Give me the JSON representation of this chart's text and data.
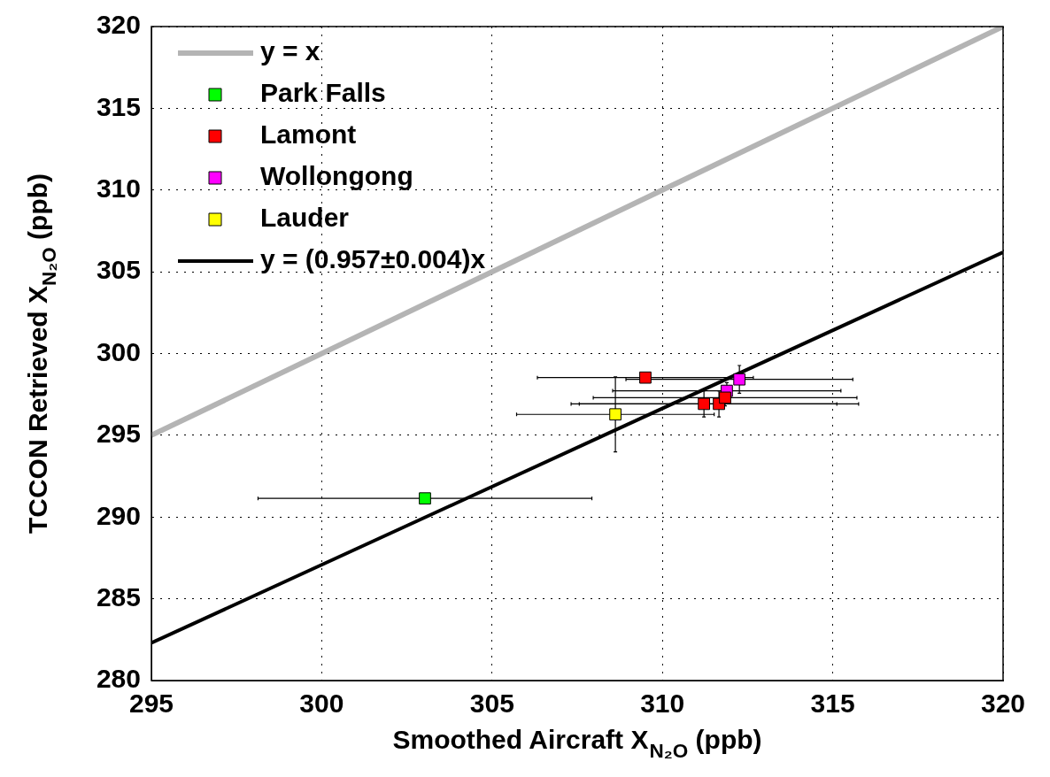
{
  "chart_data": {
    "type": "scatter",
    "xlabel": "Smoothed Aircraft X$_{N₂O}$ (ppb)",
    "ylabel": "TCCON Retrieved X$_{N₂O}$ (ppb)",
    "xlim": [
      295,
      320
    ],
    "xticks": [
      295,
      300,
      305,
      310,
      315,
      320
    ],
    "ylim": [
      280,
      320
    ],
    "yticks": [
      280,
      285,
      290,
      295,
      300,
      305,
      310,
      315,
      320
    ],
    "grid": true,
    "legend": "top left",
    "marker": "square",
    "series": [
      {
        "name": "y = x",
        "type": "line",
        "marker": "none",
        "color": "#b4b4b4",
        "x": [
          295,
          320
        ],
        "values": [
          295,
          320
        ]
      },
      {
        "name": "Park Falls",
        "color": "#00ff00",
        "x": [
          303.03
        ],
        "values": [
          291.14
        ],
        "xerrors": [
          4.9
        ]
      },
      {
        "name": "Lamont",
        "color": "#ff0000",
        "x": [
          309.5,
          311.22,
          311.66,
          311.84
        ],
        "values": [
          298.53,
          296.92,
          296.92,
          297.3
        ],
        "xerrors": [
          3.17,
          3.9,
          4.1,
          3.87
        ],
        "errors": [
          null,
          0.8,
          0.8,
          0.5
        ]
      },
      {
        "name": "Wollongong",
        "color": "#ff00ff",
        "x": [
          311.89,
          312.26
        ],
        "values": [
          297.72,
          298.42
        ],
        "xerrors": [
          3.35,
          3.33
        ],
        "errors": [
          0.5,
          0.85
        ]
      },
      {
        "name": "Lauder",
        "color": "#ffff00",
        "x": [
          308.62
        ],
        "values": [
          296.28
        ],
        "xerrors": [
          2.9
        ],
        "errors": [
          2.3
        ]
      },
      {
        "name": "y = (0.957±0.004)x",
        "type": "line",
        "marker": "none",
        "color": "#000000",
        "x": [
          295,
          320
        ],
        "values": [
          282.3,
          306.2
        ]
      }
    ]
  }
}
